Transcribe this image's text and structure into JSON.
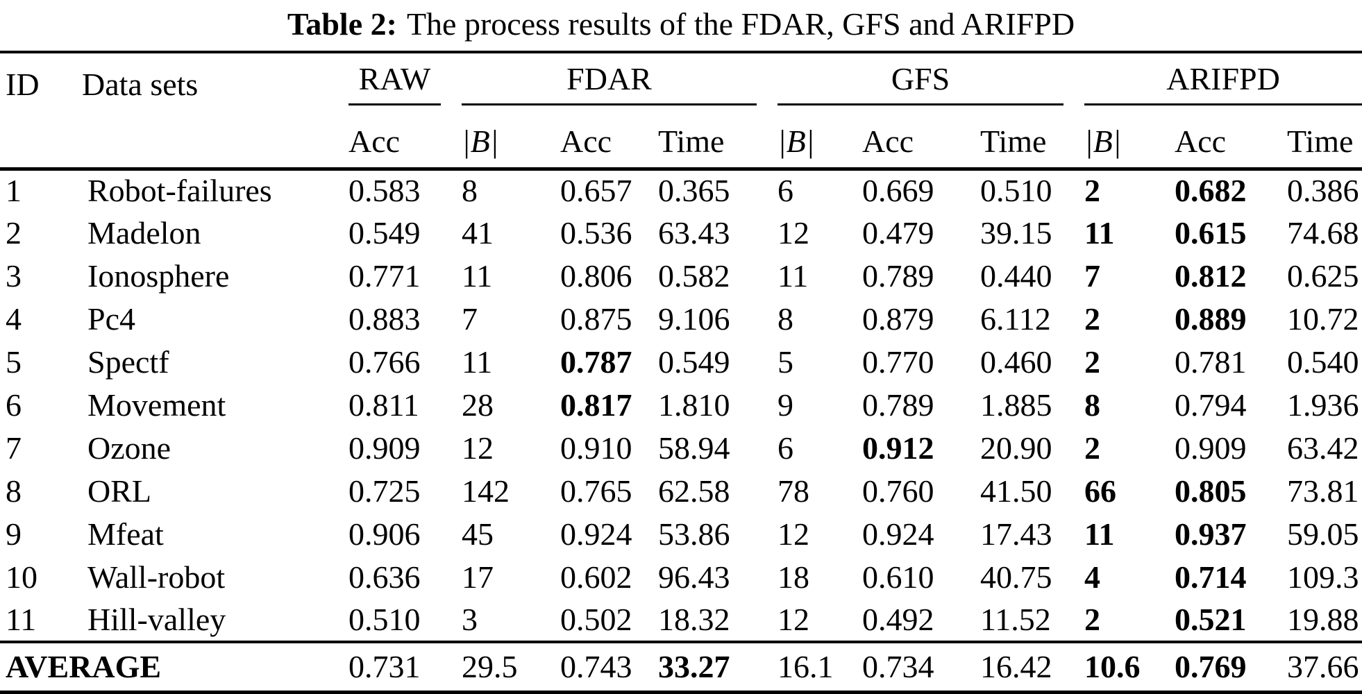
{
  "caption": {
    "label": "Table 2:",
    "text": "The process results of the FDAR, GFS and ARIFPD"
  },
  "colors": {
    "text": "#000000",
    "background": "#ffffff",
    "rule": "#000000"
  },
  "table": {
    "col_headers": {
      "id": "ID",
      "datasets": "Data sets",
      "groups": [
        {
          "name": "RAW",
          "cols": [
            "Acc"
          ]
        },
        {
          "name": "FDAR",
          "cols": [
            "|B|",
            "Acc",
            "Time"
          ]
        },
        {
          "name": "GFS",
          "cols": [
            "|B|",
            "Acc",
            "Time"
          ]
        },
        {
          "name": "ARIFPD",
          "cols": [
            "|B|",
            "Acc",
            "Time"
          ]
        }
      ]
    },
    "rows": [
      [
        "1",
        "Robot-failures",
        "0.583",
        "8",
        "0.657",
        "0.365",
        "6",
        "0.669",
        "0.510",
        {
          "v": "2",
          "b": true
        },
        {
          "v": "0.682",
          "b": true
        },
        "0.386"
      ],
      [
        "2",
        "Madelon",
        "0.549",
        "41",
        "0.536",
        "63.43",
        "12",
        "0.479",
        "39.15",
        {
          "v": "11",
          "b": true
        },
        {
          "v": "0.615",
          "b": true
        },
        "74.68"
      ],
      [
        "3",
        "Ionosphere",
        "0.771",
        "11",
        "0.806",
        "0.582",
        "11",
        "0.789",
        "0.440",
        {
          "v": "7",
          "b": true
        },
        {
          "v": "0.812",
          "b": true
        },
        "0.625"
      ],
      [
        "4",
        "Pc4",
        "0.883",
        "7",
        "0.875",
        "9.106",
        "8",
        "0.879",
        "6.112",
        {
          "v": "2",
          "b": true
        },
        {
          "v": "0.889",
          "b": true
        },
        "10.72"
      ],
      [
        "5",
        "Spectf",
        "0.766",
        "11",
        {
          "v": "0.787",
          "b": true
        },
        "0.549",
        "5",
        "0.770",
        "0.460",
        {
          "v": "2",
          "b": true
        },
        "0.781",
        "0.540"
      ],
      [
        "6",
        "Movement",
        "0.811",
        "28",
        {
          "v": "0.817",
          "b": true
        },
        "1.810",
        "9",
        "0.789",
        "1.885",
        {
          "v": "8",
          "b": true
        },
        "0.794",
        "1.936"
      ],
      [
        "7",
        "Ozone",
        "0.909",
        "12",
        "0.910",
        "58.94",
        "6",
        {
          "v": "0.912",
          "b": true
        },
        "20.90",
        {
          "v": "2",
          "b": true
        },
        "0.909",
        "63.42"
      ],
      [
        "8",
        "ORL",
        "0.725",
        "142",
        "0.765",
        "62.58",
        "78",
        "0.760",
        "41.50",
        {
          "v": "66",
          "b": true
        },
        {
          "v": "0.805",
          "b": true
        },
        "73.81"
      ],
      [
        "9",
        "Mfeat",
        "0.906",
        "45",
        "0.924",
        "53.86",
        "12",
        "0.924",
        "17.43",
        {
          "v": "11",
          "b": true
        },
        {
          "v": "0.937",
          "b": true
        },
        "59.05"
      ],
      [
        "10",
        "Wall-robot",
        "0.636",
        "17",
        "0.602",
        "96.43",
        "18",
        "0.610",
        "40.75",
        {
          "v": "4",
          "b": true
        },
        {
          "v": "0.714",
          "b": true
        },
        "109.3"
      ],
      [
        "11",
        "Hill-valley",
        "0.510",
        "3",
        "0.502",
        "18.32",
        "12",
        "0.492",
        "11.52",
        {
          "v": "2",
          "b": true
        },
        {
          "v": "0.521",
          "b": true
        },
        "19.88"
      ]
    ],
    "average": [
      {
        "v": "AVERAGE",
        "b": true,
        "span": 2
      },
      "0.731",
      "29.5",
      "0.743",
      {
        "v": "33.27",
        "b": true
      },
      "16.1",
      "0.734",
      "16.42",
      {
        "v": "10.6",
        "b": true
      },
      {
        "v": "0.769",
        "b": true
      },
      "37.66"
    ]
  }
}
